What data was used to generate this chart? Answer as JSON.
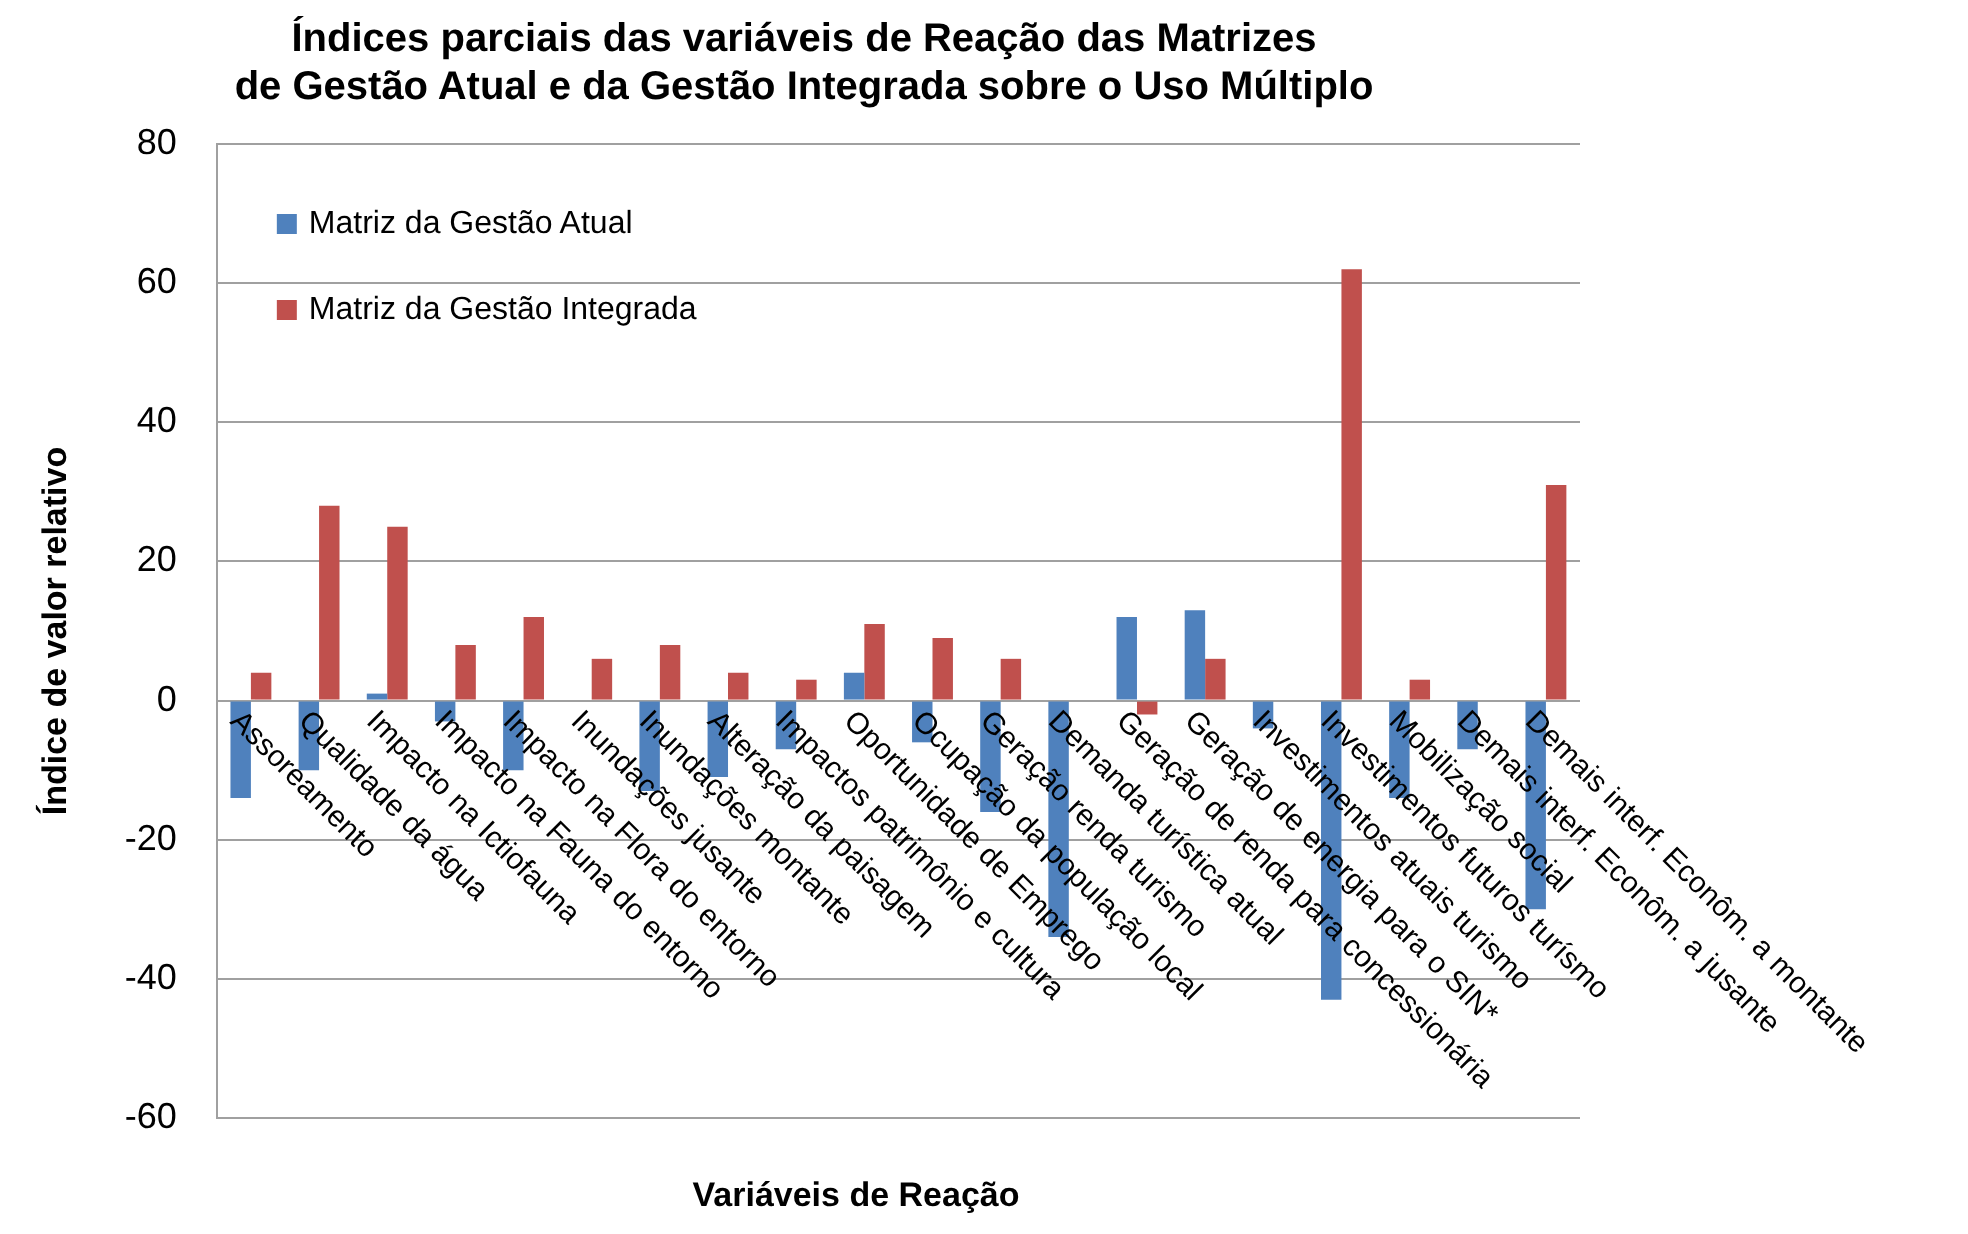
{
  "chart_data": {
    "type": "bar",
    "title": [
      "Índices parciais das variáveis de Reação das Matrizes",
      "de Gestão Atual e da Gestão Integrada sobre o Uso Múltiplo"
    ],
    "xlabel": "Variáveis de Reação",
    "ylabel": "Índice de valor relativo",
    "categories": [
      "Assoreamento",
      "Qualidade da água",
      "Impacto na Ictiofauna",
      "Impacto na Fauna do entorno",
      "Impacto na Flora do entorno",
      "Inundações jusante",
      "Inundações montante",
      "Alteração da paisagem",
      "Impactos patrimônio e cultura",
      "Oportunidade de Emprego",
      "Ocupação da população local",
      "Geração renda turismo",
      "Demanda turística atual",
      "Geração de renda para concessionária",
      "Geração de energia para o SIN*",
      "Investimentos atuais turismo",
      "Investimentos futuros turísmo",
      "Mobilização social",
      "Demais interf. Econôm. a jusante",
      "Demais interf. Econôm. a montante"
    ],
    "series": [
      {
        "name": "Matriz da Gestão Atual",
        "color": "#4f81bd",
        "values": [
          -14,
          -10,
          1,
          -3,
          -10,
          0,
          -13,
          -11,
          -7,
          4,
          -6,
          -16,
          -34,
          12,
          13,
          -4,
          -43,
          -14,
          -7,
          -30
        ]
      },
      {
        "name": "Matriz da Gestão Integrada",
        "color": "#c0504d",
        "values": [
          4,
          28,
          25,
          8,
          12,
          6,
          8,
          4,
          3,
          11,
          9,
          6,
          0,
          -2,
          6,
          0,
          62,
          3,
          0,
          31
        ]
      }
    ],
    "ylim": [
      -60,
      80
    ],
    "yticks": [
      -60,
      -40,
      -20,
      0,
      20,
      40,
      60,
      80
    ],
    "grid": "y",
    "legend": "top left"
  }
}
